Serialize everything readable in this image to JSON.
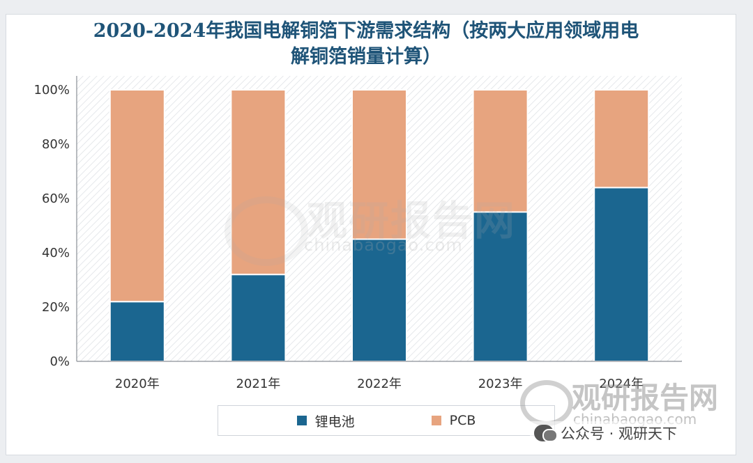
{
  "title_line1": "2020-2024年我国电解铜箔下游需求结构（按两大应用领域用电",
  "title_line2": "解铜箔销量计算）",
  "chart_data": {
    "type": "bar",
    "stacked": true,
    "percent": true,
    "title": "2020-2024年我国电解铜箔下游需求结构（按两大应用领域用电解铜箔销量计算）",
    "categories": [
      "2020年",
      "2021年",
      "2022年",
      "2023年",
      "2024年"
    ],
    "series": [
      {
        "name": "锂电池",
        "color": "#1b6690",
        "values": [
          22,
          32,
          45,
          55,
          64
        ]
      },
      {
        "name": "PCB",
        "color": "#e7a47f",
        "values": [
          78,
          68,
          55,
          45,
          36
        ]
      }
    ],
    "yticks": [
      "0%",
      "20%",
      "40%",
      "60%",
      "80%",
      "100%"
    ],
    "ylim": [
      0,
      100
    ],
    "legend_position": "bottom",
    "grid": false,
    "plot_background": "hatched"
  },
  "watermark": {
    "brand": "观研报告网",
    "url": "chinabaogao.com"
  },
  "account_label": "公众号 · 观研天下"
}
